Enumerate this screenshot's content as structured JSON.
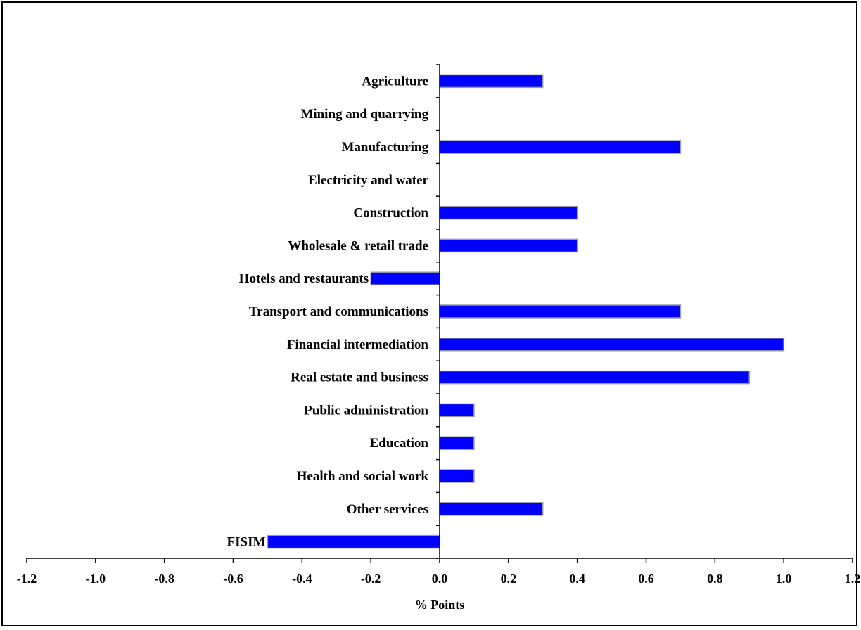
{
  "chart_data": {
    "type": "bar",
    "orientation": "horizontal",
    "categories": [
      "Agriculture",
      "Mining and quarrying",
      "Manufacturing",
      "Electricity and  water",
      "Construction",
      "Wholesale & retail trade",
      "Hotels and restaurants",
      "Transport and communications",
      "Financial intermediation",
      "Real estate and business",
      "Public administration",
      "Education",
      "Health and social work",
      "Other services",
      "FISIM"
    ],
    "values": [
      0.3,
      0.0,
      0.7,
      0.0,
      0.4,
      0.4,
      -0.2,
      0.7,
      1.0,
      0.9,
      0.1,
      0.1,
      0.1,
      0.3,
      -0.5
    ],
    "title": "",
    "xlabel": "% Points",
    "ylabel": "",
    "xlim": [
      -1.2,
      1.2
    ],
    "xticks": [
      "-1.2",
      "-1.0",
      "-0.8",
      "-0.6",
      "-0.4",
      "-0.2",
      "0.0",
      "0.2",
      "0.4",
      "0.6",
      "0.8",
      "1.0",
      "1.2"
    ],
    "grid": false,
    "legend": "none",
    "bar_color": "#0000ff",
    "bar_edge_color": "#9a9aa8"
  }
}
